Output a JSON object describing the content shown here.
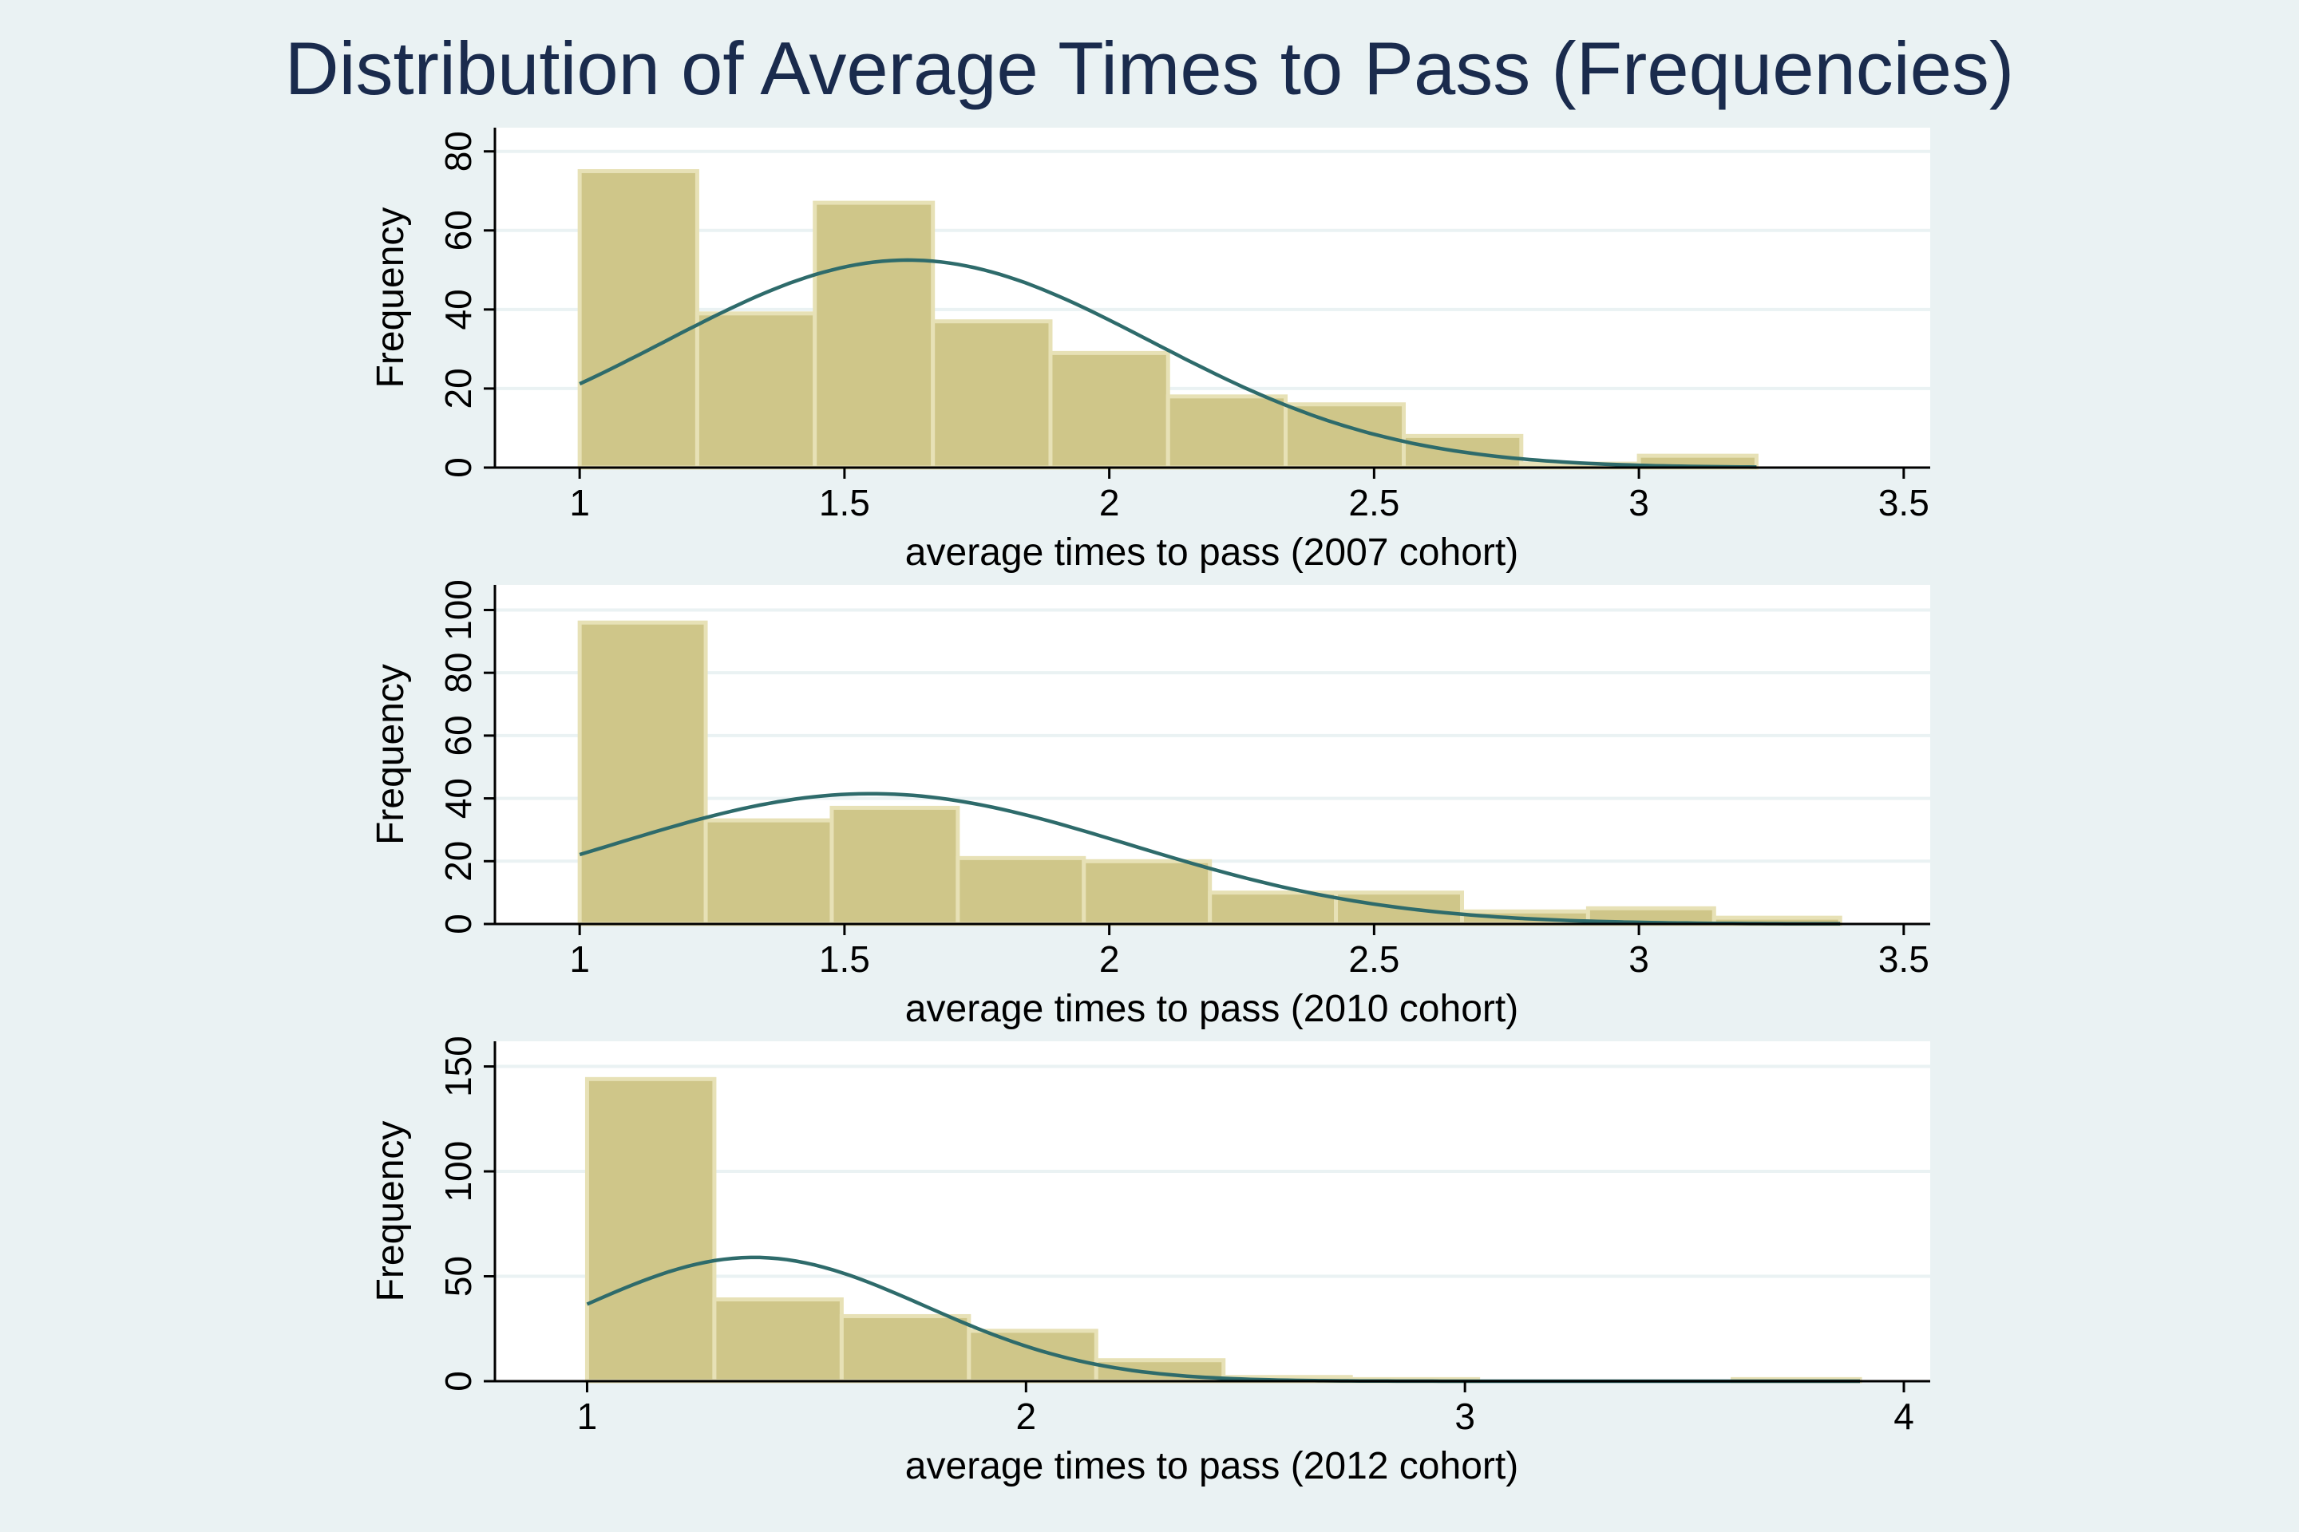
{
  "title": "Distribution of Average Times to Pass (Frequencies)",
  "colors": {
    "background": "#eaf2f3",
    "plot_background": "#ffffff",
    "gridline": "#eaf2f3",
    "bar_fill": "#cfc689",
    "bar_stroke": "#e7e1b6",
    "curve": "#2e6b6b",
    "title": "#1a2b4d",
    "axis": "#000000"
  },
  "chart_data": [
    {
      "type": "bar",
      "title": "",
      "xlabel": "average times to pass (2007 cohort)",
      "ylabel": "Frequency",
      "xlim": [
        0.84,
        3.55
      ],
      "ylim": [
        0,
        86
      ],
      "x_ticks": [
        1,
        1.5,
        2,
        2.5,
        3,
        3.5
      ],
      "x_tick_labels": [
        "1",
        "1.5",
        "2",
        "2.5",
        "3",
        "3.5"
      ],
      "y_ticks": [
        0,
        20,
        40,
        60,
        80
      ],
      "y_tick_labels": [
        "0",
        "20",
        "40",
        "60",
        "80"
      ],
      "grid": true,
      "bins": [
        {
          "x0": 1.0,
          "x1": 1.222,
          "count": 75
        },
        {
          "x0": 1.222,
          "x1": 1.444,
          "count": 39
        },
        {
          "x0": 1.444,
          "x1": 1.667,
          "count": 67
        },
        {
          "x0": 1.667,
          "x1": 1.889,
          "count": 37
        },
        {
          "x0": 1.889,
          "x1": 2.111,
          "count": 29
        },
        {
          "x0": 2.111,
          "x1": 2.333,
          "count": 18
        },
        {
          "x0": 2.333,
          "x1": 2.556,
          "count": 16
        },
        {
          "x0": 2.556,
          "x1": 2.778,
          "count": 8
        },
        {
          "x0": 2.778,
          "x1": 3.0,
          "count": 1
        },
        {
          "x0": 3.0,
          "x1": 3.222,
          "count": 3
        }
      ],
      "normal_curve": {
        "mean": 1.62,
        "sd": 0.46,
        "peak": 52.5,
        "x_start": 1.0,
        "x_end": 3.222
      }
    },
    {
      "type": "bar",
      "title": "",
      "xlabel": "average times to pass (2010 cohort)",
      "ylabel": "Frequency",
      "xlim": [
        0.84,
        3.55
      ],
      "ylim": [
        0,
        108
      ],
      "x_ticks": [
        1,
        1.5,
        2,
        2.5,
        3,
        3.5
      ],
      "x_tick_labels": [
        "1",
        "1.5",
        "2",
        "2.5",
        "3",
        "3.5"
      ],
      "y_ticks": [
        0,
        20,
        40,
        60,
        80,
        100
      ],
      "y_tick_labels": [
        "0",
        "20",
        "40",
        "60",
        "80",
        "100"
      ],
      "grid": true,
      "bins": [
        {
          "x0": 1.0,
          "x1": 1.238,
          "count": 96
        },
        {
          "x0": 1.238,
          "x1": 1.476,
          "count": 33
        },
        {
          "x0": 1.476,
          "x1": 1.714,
          "count": 37
        },
        {
          "x0": 1.714,
          "x1": 1.952,
          "count": 21
        },
        {
          "x0": 1.952,
          "x1": 2.19,
          "count": 20
        },
        {
          "x0": 2.19,
          "x1": 2.428,
          "count": 10
        },
        {
          "x0": 2.428,
          "x1": 2.666,
          "count": 10
        },
        {
          "x0": 2.666,
          "x1": 2.904,
          "count": 4
        },
        {
          "x0": 2.904,
          "x1": 3.142,
          "count": 5
        },
        {
          "x0": 3.142,
          "x1": 3.38,
          "count": 2
        }
      ],
      "normal_curve": {
        "mean": 1.55,
        "sd": 0.49,
        "peak": 41.5,
        "x_start": 1.0,
        "x_end": 3.38
      }
    },
    {
      "type": "bar",
      "title": "",
      "xlabel": "average times to pass (2012 cohort)",
      "ylabel": "Frequency",
      "xlim": [
        0.79,
        4.06
      ],
      "ylim": [
        0,
        162
      ],
      "x_ticks": [
        1,
        2,
        3,
        4
      ],
      "x_tick_labels": [
        "1",
        "2",
        "3",
        "4"
      ],
      "y_ticks": [
        0,
        50,
        100,
        150
      ],
      "y_tick_labels": [
        "0",
        "50",
        "100",
        "150"
      ],
      "grid": true,
      "bins": [
        {
          "x0": 1.0,
          "x1": 1.29,
          "count": 144
        },
        {
          "x0": 1.29,
          "x1": 1.58,
          "count": 39
        },
        {
          "x0": 1.58,
          "x1": 1.87,
          "count": 31
        },
        {
          "x0": 1.87,
          "x1": 2.16,
          "count": 24
        },
        {
          "x0": 2.16,
          "x1": 2.45,
          "count": 10
        },
        {
          "x0": 2.45,
          "x1": 2.74,
          "count": 2
        },
        {
          "x0": 2.74,
          "x1": 3.03,
          "count": 1
        },
        {
          "x0": 3.03,
          "x1": 3.32,
          "count": 0
        },
        {
          "x0": 3.32,
          "x1": 3.61,
          "count": 0
        },
        {
          "x0": 3.61,
          "x1": 3.9,
          "count": 1
        }
      ],
      "normal_curve": {
        "mean": 1.38,
        "sd": 0.39,
        "peak": 59,
        "x_start": 1.0,
        "x_end": 3.9
      }
    }
  ]
}
